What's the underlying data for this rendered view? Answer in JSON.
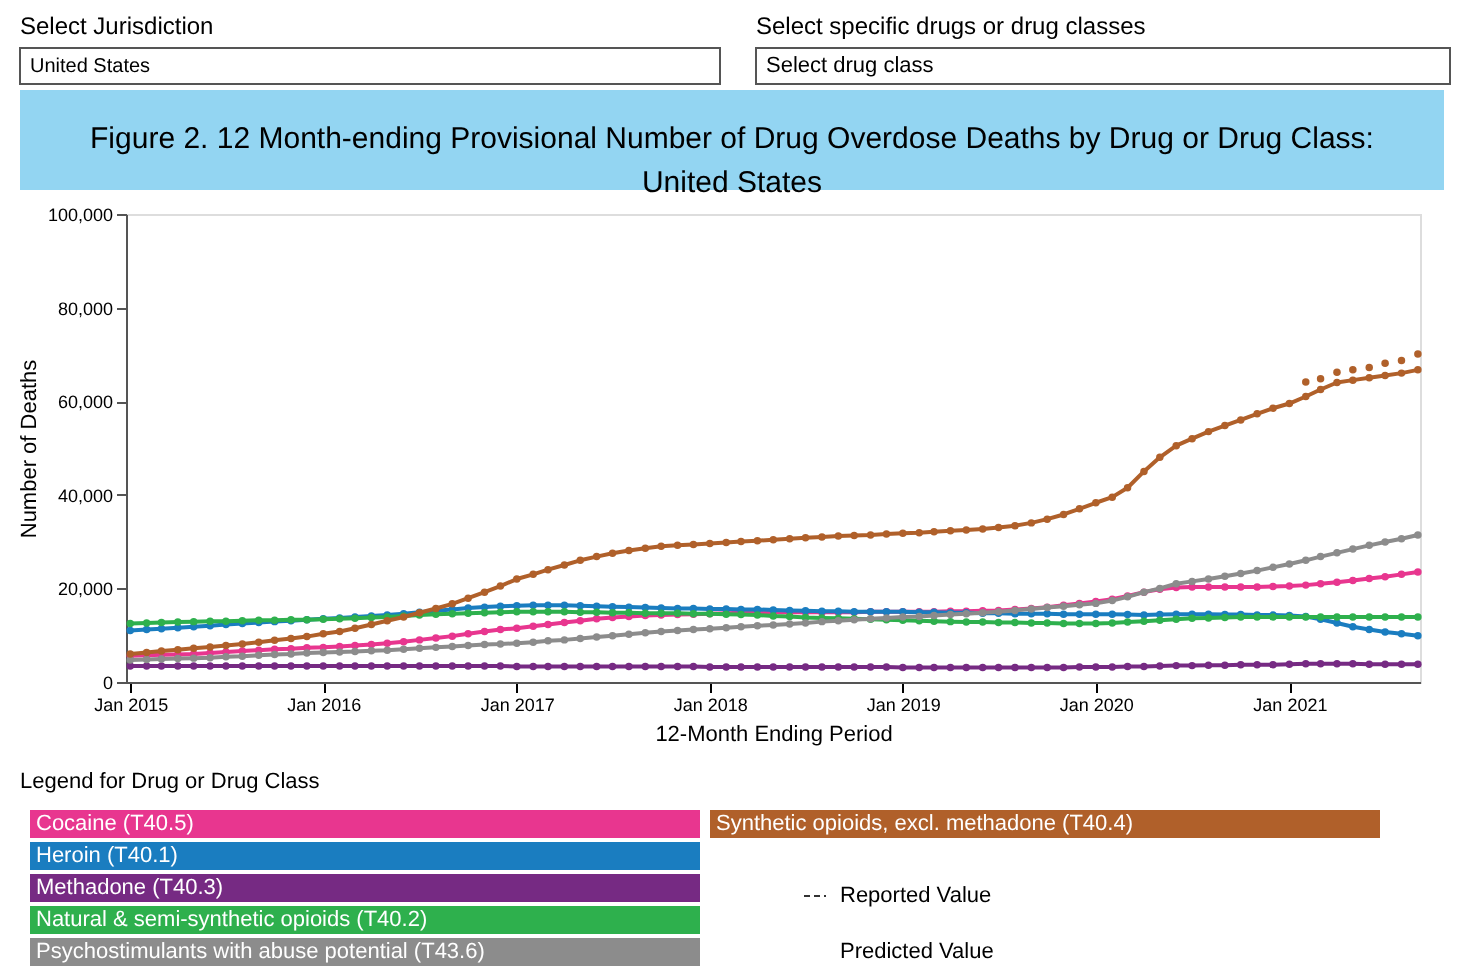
{
  "chart_data": {
    "type": "line",
    "title": "Figure 2. 12 Month-ending Provisional Number of Drug Overdose Deaths by Drug or Drug Class:\nUnited States",
    "xlabel": "12-Month Ending Period",
    "ylabel": "Number of Deaths",
    "legend_title": "Legend for Drug or Drug Class",
    "annotations": [
      "Select Jurisdiction",
      "United States",
      "Select specific drugs or drug classes",
      "Select drug class",
      "Reported Value",
      "Predicted Value"
    ],
    "x": [
      "2015-01",
      "2015-02",
      "2015-03",
      "2015-04",
      "2015-05",
      "2015-06",
      "2015-07",
      "2015-08",
      "2015-09",
      "2015-10",
      "2015-11",
      "2015-12",
      "2016-01",
      "2016-02",
      "2016-03",
      "2016-04",
      "2016-05",
      "2016-06",
      "2016-07",
      "2016-08",
      "2016-09",
      "2016-10",
      "2016-11",
      "2016-12",
      "2017-01",
      "2017-02",
      "2017-03",
      "2017-04",
      "2017-05",
      "2017-06",
      "2017-07",
      "2017-08",
      "2017-09",
      "2017-10",
      "2017-11",
      "2017-12",
      "2018-01",
      "2018-02",
      "2018-03",
      "2018-04",
      "2018-05",
      "2018-06",
      "2018-07",
      "2018-08",
      "2018-09",
      "2018-10",
      "2018-11",
      "2018-12",
      "2019-01",
      "2019-02",
      "2019-03",
      "2019-04",
      "2019-05",
      "2019-06",
      "2019-07",
      "2019-08",
      "2019-09",
      "2019-10",
      "2019-11",
      "2019-12",
      "2020-01",
      "2020-02",
      "2020-03",
      "2020-04",
      "2020-05",
      "2020-06",
      "2020-07",
      "2020-08",
      "2020-09",
      "2020-10",
      "2020-11",
      "2020-12",
      "2021-01",
      "2021-02",
      "2021-03",
      "2021-04",
      "2021-05",
      "2021-06",
      "2021-07",
      "2021-08",
      "2021-09"
    ],
    "series": [
      {
        "name": "Cocaine (T40.5)",
        "color": "#e8368f",
        "values": [
          5600,
          5700,
          5800,
          5900,
          6000,
          6200,
          6400,
          6600,
          6800,
          7000,
          7100,
          7300,
          7400,
          7600,
          7800,
          8000,
          8300,
          8600,
          9000,
          9400,
          9800,
          10300,
          10800,
          11200,
          11500,
          11900,
          12300,
          12700,
          13100,
          13500,
          13800,
          14000,
          14200,
          14300,
          14400,
          14500,
          14600,
          14700,
          14800,
          14900,
          14900,
          14900,
          14900,
          14900,
          14900,
          14900,
          15000,
          15000,
          15000,
          15000,
          15000,
          15100,
          15100,
          15200,
          15300,
          15500,
          15700,
          16000,
          16400,
          16800,
          17200,
          17700,
          18400,
          19200,
          19800,
          20200,
          20300,
          20300,
          20300,
          20300,
          20300,
          20400,
          20500,
          20700,
          21000,
          21300,
          21700,
          22100,
          22500,
          23000,
          23500
        ]
      },
      {
        "name": "Heroin (T40.1)",
        "color": "#1a7dc0",
        "values": [
          11000,
          11200,
          11400,
          11600,
          11800,
          12000,
          12300,
          12500,
          12700,
          12900,
          13100,
          13300,
          13500,
          13700,
          13900,
          14100,
          14300,
          14600,
          14900,
          15200,
          15500,
          15800,
          16000,
          16200,
          16300,
          16400,
          16400,
          16400,
          16300,
          16200,
          16100,
          16000,
          15900,
          15800,
          15700,
          15700,
          15600,
          15600,
          15500,
          15500,
          15400,
          15300,
          15200,
          15100,
          15100,
          15000,
          15000,
          15000,
          15000,
          14900,
          14900,
          14800,
          14800,
          14700,
          14700,
          14600,
          14600,
          14600,
          14500,
          14500,
          14500,
          14500,
          14400,
          14300,
          14400,
          14500,
          14500,
          14500,
          14400,
          14400,
          14300,
          14300,
          14200,
          14000,
          13400,
          12600,
          11800,
          11200,
          10700,
          10300,
          9900
        ]
      },
      {
        "name": "Methadone (T40.3)",
        "color": "#762a83",
        "values": [
          3400,
          3400,
          3400,
          3400,
          3400,
          3400,
          3400,
          3400,
          3400,
          3400,
          3400,
          3400,
          3400,
          3400,
          3400,
          3400,
          3400,
          3400,
          3400,
          3400,
          3400,
          3400,
          3400,
          3400,
          3300,
          3300,
          3300,
          3300,
          3300,
          3300,
          3300,
          3300,
          3300,
          3300,
          3300,
          3300,
          3200,
          3200,
          3200,
          3200,
          3200,
          3200,
          3200,
          3200,
          3200,
          3200,
          3200,
          3200,
          3100,
          3100,
          3100,
          3100,
          3100,
          3100,
          3100,
          3100,
          3100,
          3100,
          3100,
          3200,
          3200,
          3200,
          3300,
          3300,
          3400,
          3500,
          3500,
          3600,
          3600,
          3700,
          3700,
          3700,
          3800,
          3900,
          3900,
          3900,
          3900,
          3800,
          3800,
          3800,
          3800
        ]
      },
      {
        "name": "Natural & semi-synthetic opioids (T40.2)",
        "color": "#2eb04d",
        "values": [
          12500,
          12600,
          12700,
          12800,
          12900,
          13000,
          13000,
          13100,
          13200,
          13200,
          13300,
          13300,
          13400,
          13500,
          13600,
          13800,
          13900,
          14100,
          14300,
          14500,
          14600,
          14700,
          14800,
          14900,
          15000,
          15000,
          15000,
          15000,
          14900,
          14900,
          14800,
          14800,
          14700,
          14700,
          14700,
          14600,
          14600,
          14500,
          14400,
          14300,
          14100,
          14000,
          13800,
          13700,
          13600,
          13500,
          13400,
          13300,
          13200,
          13100,
          13000,
          12900,
          12800,
          12800,
          12700,
          12700,
          12600,
          12600,
          12500,
          12500,
          12500,
          12600,
          12800,
          13000,
          13200,
          13400,
          13600,
          13700,
          13800,
          13900,
          13900,
          13900,
          13900,
          13900,
          13900,
          13900,
          13900,
          13900,
          13900,
          13900,
          13900
        ]
      },
      {
        "name": "Psychostimulants with abuse potential (T43.6)",
        "color": "#8c8c8c",
        "values": [
          4700,
          4800,
          4900,
          5000,
          5100,
          5200,
          5400,
          5500,
          5700,
          5900,
          6000,
          6200,
          6300,
          6400,
          6500,
          6700,
          6800,
          7000,
          7200,
          7400,
          7600,
          7800,
          8000,
          8100,
          8300,
          8500,
          8800,
          9000,
          9300,
          9600,
          9900,
          10200,
          10500,
          10800,
          11000,
          11200,
          11400,
          11600,
          11800,
          12000,
          12200,
          12400,
          12600,
          12900,
          13100,
          13300,
          13500,
          13700,
          13900,
          14000,
          14200,
          14400,
          14600,
          14800,
          15000,
          15300,
          15600,
          15900,
          16200,
          16500,
          16800,
          17400,
          18200,
          19200,
          20000,
          21000,
          21500,
          22000,
          22600,
          23200,
          23800,
          24500,
          25200,
          26000,
          26800,
          27600,
          28400,
          29200,
          29900,
          30600,
          31400
        ]
      },
      {
        "name": "Synthetic opioids, excl. methadone (T40.4)",
        "color": "#b0602a",
        "values": [
          6000,
          6300,
          6600,
          6900,
          7200,
          7500,
          7800,
          8100,
          8500,
          8900,
          9300,
          9700,
          10300,
          10800,
          11500,
          12300,
          13100,
          13900,
          14800,
          15700,
          16700,
          17900,
          19200,
          20500,
          22000,
          23000,
          24000,
          25000,
          26000,
          26800,
          27500,
          28100,
          28600,
          29000,
          29200,
          29400,
          29600,
          29800,
          30000,
          30200,
          30400,
          30600,
          30800,
          31000,
          31200,
          31300,
          31400,
          31600,
          31800,
          31900,
          32100,
          32300,
          32500,
          32700,
          33000,
          33400,
          34000,
          34800,
          35800,
          37000,
          38300,
          39500,
          41500,
          45000,
          48000,
          50500,
          52000,
          53500,
          54800,
          56000,
          57300,
          58500,
          59500,
          61000,
          62500,
          64000,
          64500,
          65000,
          65500,
          66000,
          66700
        ]
      },
      {
        "color": "#b0602a",
        "type": "scatter",
        "x": [
          "2021-02",
          "2021-03",
          "2021-04",
          "2021-05",
          "2021-06",
          "2021-07",
          "2021-08",
          "2021-09"
        ],
        "values": [
          64100,
          64800,
          66200,
          66700,
          67200,
          68100,
          68700,
          70100
        ]
      }
    ],
    "xlim": [
      "2014-12-24",
      "2021-09-05"
    ],
    "xticks": [
      {
        "value": "2015-01",
        "label": "Jan 2015"
      },
      {
        "value": "2016-01",
        "label": "Jan 2016"
      },
      {
        "value": "2017-01",
        "label": "Jan 2017"
      },
      {
        "value": "2018-01",
        "label": "Jan 2018"
      },
      {
        "value": "2019-01",
        "label": "Jan 2019"
      },
      {
        "value": "2020-01",
        "label": "Jan 2020"
      },
      {
        "value": "2021-01",
        "label": "Jan 2021"
      }
    ],
    "ylim": [
      0,
      100000
    ],
    "yticks": [
      0,
      {
        "value": 20000,
        "label": "20,000"
      },
      {
        "value": 40000,
        "label": "40,000"
      },
      {
        "value": 60000,
        "label": "60,000"
      },
      {
        "value": 80000,
        "label": "80,000"
      },
      {
        "value": 100000,
        "label": "100,000"
      }
    ],
    "grid": false,
    "legend": "bottom",
    "marker": "circle",
    "line_style": "solid"
  }
}
